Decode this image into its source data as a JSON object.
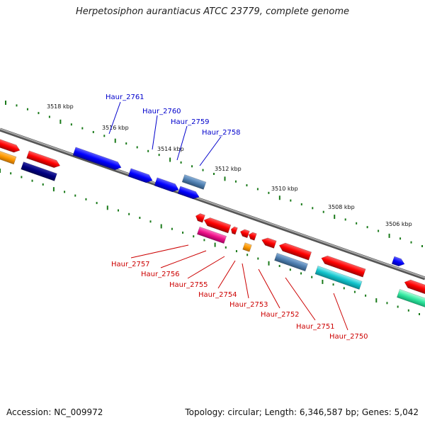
{
  "title": "Herpetosiphon aurantiacus ATCC 23779, complete genome",
  "footer": {
    "accession": "Accession: NC_009972",
    "summary": "Topology: circular; Length: 6,346,587 bp; Genes: 5,042"
  },
  "ruler_labels": [
    "3518 kbp",
    "3516 kbp",
    "3514 kbp",
    "3512 kbp",
    "3510 kbp",
    "3508 kbp",
    "3506 kbp"
  ],
  "upper_genes": [
    "Haur_2761",
    "Haur_2760",
    "Haur_2759",
    "Haur_2758"
  ],
  "lower_genes": [
    "Haur_2757",
    "Haur_2756",
    "Haur_2755",
    "Haur_2754",
    "Haur_2753",
    "Haur_2752",
    "Haur_2751",
    "Haur_2750"
  ],
  "colors": {
    "upper_label": "#0000cc",
    "lower_label": "#cc0000",
    "backbone": "#7a7a7a",
    "tick": "#1a7a1a"
  }
}
